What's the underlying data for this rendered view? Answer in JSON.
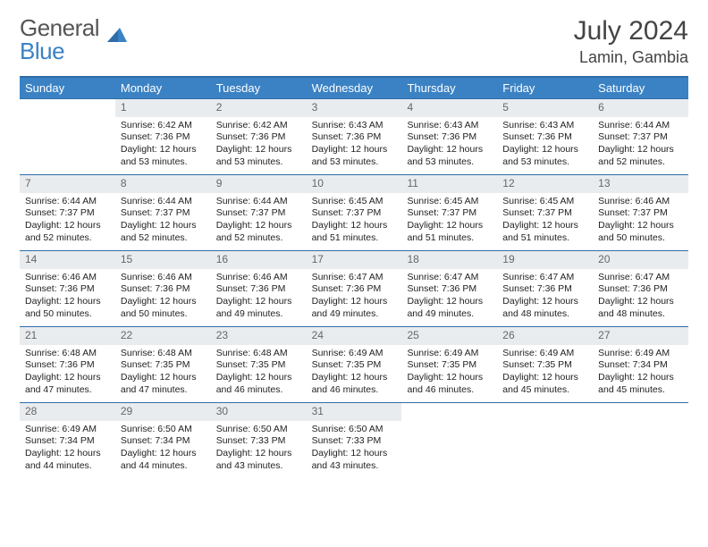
{
  "logo": {
    "text_gray": "General",
    "text_blue": "Blue"
  },
  "header": {
    "month_title": "July 2024",
    "location": "Lamin, Gambia"
  },
  "colors": {
    "header_bar": "#3b82c4",
    "border": "#2f6da8",
    "daynum_bg": "#e9ecef",
    "daynum_text": "#666666",
    "body_text": "#222222"
  },
  "weekdays": [
    "Sunday",
    "Monday",
    "Tuesday",
    "Wednesday",
    "Thursday",
    "Friday",
    "Saturday"
  ],
  "weeks": [
    [
      null,
      {
        "n": "1",
        "sr": "6:42 AM",
        "ss": "7:36 PM",
        "dl": "12 hours and 53 minutes."
      },
      {
        "n": "2",
        "sr": "6:42 AM",
        "ss": "7:36 PM",
        "dl": "12 hours and 53 minutes."
      },
      {
        "n": "3",
        "sr": "6:43 AM",
        "ss": "7:36 PM",
        "dl": "12 hours and 53 minutes."
      },
      {
        "n": "4",
        "sr": "6:43 AM",
        "ss": "7:36 PM",
        "dl": "12 hours and 53 minutes."
      },
      {
        "n": "5",
        "sr": "6:43 AM",
        "ss": "7:36 PM",
        "dl": "12 hours and 53 minutes."
      },
      {
        "n": "6",
        "sr": "6:44 AM",
        "ss": "7:37 PM",
        "dl": "12 hours and 52 minutes."
      }
    ],
    [
      {
        "n": "7",
        "sr": "6:44 AM",
        "ss": "7:37 PM",
        "dl": "12 hours and 52 minutes."
      },
      {
        "n": "8",
        "sr": "6:44 AM",
        "ss": "7:37 PM",
        "dl": "12 hours and 52 minutes."
      },
      {
        "n": "9",
        "sr": "6:44 AM",
        "ss": "7:37 PM",
        "dl": "12 hours and 52 minutes."
      },
      {
        "n": "10",
        "sr": "6:45 AM",
        "ss": "7:37 PM",
        "dl": "12 hours and 51 minutes."
      },
      {
        "n": "11",
        "sr": "6:45 AM",
        "ss": "7:37 PM",
        "dl": "12 hours and 51 minutes."
      },
      {
        "n": "12",
        "sr": "6:45 AM",
        "ss": "7:37 PM",
        "dl": "12 hours and 51 minutes."
      },
      {
        "n": "13",
        "sr": "6:46 AM",
        "ss": "7:37 PM",
        "dl": "12 hours and 50 minutes."
      }
    ],
    [
      {
        "n": "14",
        "sr": "6:46 AM",
        "ss": "7:36 PM",
        "dl": "12 hours and 50 minutes."
      },
      {
        "n": "15",
        "sr": "6:46 AM",
        "ss": "7:36 PM",
        "dl": "12 hours and 50 minutes."
      },
      {
        "n": "16",
        "sr": "6:46 AM",
        "ss": "7:36 PM",
        "dl": "12 hours and 49 minutes."
      },
      {
        "n": "17",
        "sr": "6:47 AM",
        "ss": "7:36 PM",
        "dl": "12 hours and 49 minutes."
      },
      {
        "n": "18",
        "sr": "6:47 AM",
        "ss": "7:36 PM",
        "dl": "12 hours and 49 minutes."
      },
      {
        "n": "19",
        "sr": "6:47 AM",
        "ss": "7:36 PM",
        "dl": "12 hours and 48 minutes."
      },
      {
        "n": "20",
        "sr": "6:47 AM",
        "ss": "7:36 PM",
        "dl": "12 hours and 48 minutes."
      }
    ],
    [
      {
        "n": "21",
        "sr": "6:48 AM",
        "ss": "7:36 PM",
        "dl": "12 hours and 47 minutes."
      },
      {
        "n": "22",
        "sr": "6:48 AM",
        "ss": "7:35 PM",
        "dl": "12 hours and 47 minutes."
      },
      {
        "n": "23",
        "sr": "6:48 AM",
        "ss": "7:35 PM",
        "dl": "12 hours and 46 minutes."
      },
      {
        "n": "24",
        "sr": "6:49 AM",
        "ss": "7:35 PM",
        "dl": "12 hours and 46 minutes."
      },
      {
        "n": "25",
        "sr": "6:49 AM",
        "ss": "7:35 PM",
        "dl": "12 hours and 46 minutes."
      },
      {
        "n": "26",
        "sr": "6:49 AM",
        "ss": "7:35 PM",
        "dl": "12 hours and 45 minutes."
      },
      {
        "n": "27",
        "sr": "6:49 AM",
        "ss": "7:34 PM",
        "dl": "12 hours and 45 minutes."
      }
    ],
    [
      {
        "n": "28",
        "sr": "6:49 AM",
        "ss": "7:34 PM",
        "dl": "12 hours and 44 minutes."
      },
      {
        "n": "29",
        "sr": "6:50 AM",
        "ss": "7:34 PM",
        "dl": "12 hours and 44 minutes."
      },
      {
        "n": "30",
        "sr": "6:50 AM",
        "ss": "7:33 PM",
        "dl": "12 hours and 43 minutes."
      },
      {
        "n": "31",
        "sr": "6:50 AM",
        "ss": "7:33 PM",
        "dl": "12 hours and 43 minutes."
      },
      null,
      null,
      null
    ]
  ],
  "labels": {
    "sunrise": "Sunrise:",
    "sunset": "Sunset:",
    "daylight": "Daylight:"
  }
}
